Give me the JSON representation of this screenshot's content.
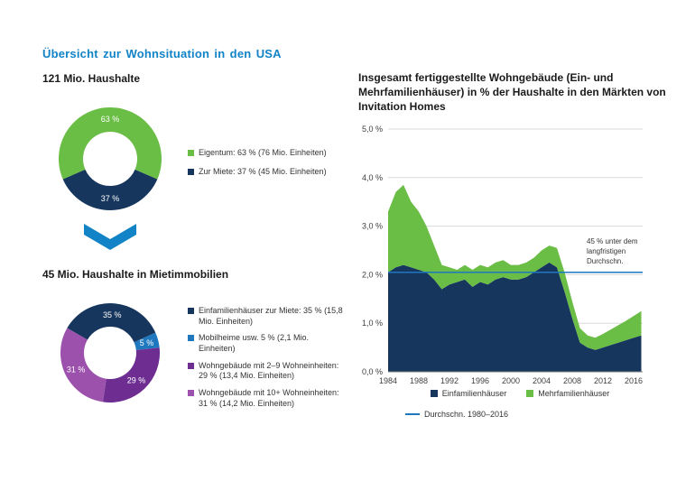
{
  "page": {
    "title": "Übersicht zur Wohnsituation in den USA",
    "accent_color": "#1283C6"
  },
  "chart_data": [
    {
      "id": "households-donut",
      "type": "pie",
      "donut": true,
      "title": "121 Mio. Haushalte",
      "start_angle_deg": -113.4,
      "slices": [
        {
          "label": "Eigentum: 63 % (76 Mio. Einheiten)",
          "value": 63,
          "data_label": "63 %",
          "color": "#6ABD45"
        },
        {
          "label": "Zur Miete: 37 % (45 Mio. Einheiten)",
          "value": 37,
          "data_label": "37 %",
          "color": "#16365D"
        }
      ]
    },
    {
      "id": "rental-households-donut",
      "type": "pie",
      "donut": true,
      "title": "45 Mio. Haushalte in Mietimmobilien",
      "start_angle_deg": -60,
      "slices": [
        {
          "label": "Einfamilienhäuser zur Miete: 35 % (15,8 Mio. Einheiten)",
          "value": 35,
          "data_label": "35 %",
          "color": "#16365D"
        },
        {
          "label": "Mobilheime usw. 5 % (2,1 Mio. Einheiten)",
          "value": 5,
          "data_label": "5 %",
          "color": "#1F78BE"
        },
        {
          "label": "Wohngebäude mit 2–9 Wohneinheiten: 29 % (13,4 Mio. Einheiten)",
          "value": 29,
          "data_label": "29 %",
          "color": "#6E2D91"
        },
        {
          "label": "Wohngebäude mit 10+ Wohneinheiten: 31 % (14,2 Mio. Einheiten)",
          "value": 31,
          "data_label": "31 %",
          "color": "#9C51AC"
        }
      ]
    },
    {
      "id": "completions-area",
      "type": "area",
      "stacked": true,
      "grid": true,
      "legend_position": "bottom",
      "title": "Insgesamt fertiggestellte Wohngebäude (Ein- und Mehrfamilienhäuser) in % der Haushalte in den Märkten von Invitation Homes",
      "x": [
        1984,
        1985,
        1986,
        1987,
        1988,
        1989,
        1990,
        1991,
        1992,
        1993,
        1994,
        1995,
        1996,
        1997,
        1998,
        1999,
        2000,
        2001,
        2002,
        2003,
        2004,
        2005,
        2006,
        2007,
        2008,
        2009,
        2010,
        2011,
        2012,
        2013,
        2014,
        2015,
        2016,
        2017
      ],
      "series": [
        {
          "name": "Einfamilienhäuser",
          "color": "#16365D",
          "values": [
            2.05,
            2.15,
            2.2,
            2.15,
            2.1,
            2.05,
            1.9,
            1.7,
            1.8,
            1.85,
            1.9,
            1.75,
            1.85,
            1.8,
            1.9,
            1.95,
            1.9,
            1.9,
            1.95,
            2.05,
            2.15,
            2.25,
            2.15,
            1.65,
            1.1,
            0.6,
            0.5,
            0.45,
            0.5,
            0.55,
            0.6,
            0.65,
            0.7,
            0.75
          ]
        },
        {
          "name": "Mehrfamilienhäuser",
          "color": "#6ABD45",
          "values": [
            1.25,
            1.55,
            1.65,
            1.35,
            1.2,
            0.95,
            0.7,
            0.5,
            0.35,
            0.25,
            0.3,
            0.35,
            0.35,
            0.35,
            0.35,
            0.35,
            0.3,
            0.3,
            0.3,
            0.3,
            0.35,
            0.35,
            0.4,
            0.4,
            0.35,
            0.3,
            0.25,
            0.25,
            0.28,
            0.32,
            0.36,
            0.4,
            0.45,
            0.5
          ]
        }
      ],
      "ylim": [
        0,
        5
      ],
      "ytick_values": [
        0,
        1,
        2,
        3,
        4,
        5
      ],
      "ytick_labels": [
        "0,0 %",
        "1,0 %",
        "2,0 %",
        "3,0 %",
        "4,0 %",
        "5,0 %"
      ],
      "xticks": [
        1984,
        1988,
        1992,
        1996,
        2000,
        2004,
        2008,
        2012,
        2016
      ],
      "average_line": {
        "value": 2.05,
        "label": "Durchschn. 1980–2016",
        "color": "#1F78BE"
      },
      "annotation": "45 % unter dem langfristigen Durchschn."
    }
  ]
}
